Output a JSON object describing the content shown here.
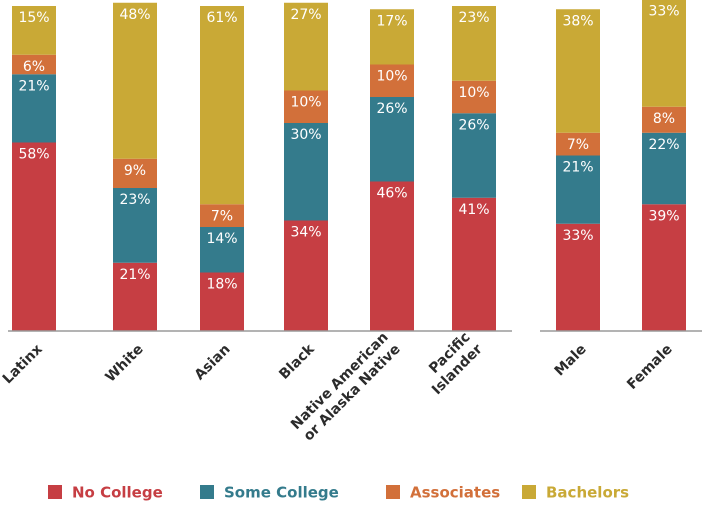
{
  "chart_data": {
    "type": "stacked_bar",
    "categories": [
      [
        "Latinx"
      ],
      [
        "White"
      ],
      [
        "Asian"
      ],
      [
        "Black"
      ],
      [
        "Native American",
        "or Alaska Native"
      ],
      [
        "Pacific",
        "Islander"
      ],
      [
        "Male"
      ],
      [
        "Female"
      ]
    ],
    "series": [
      {
        "name": "No College",
        "color": "#c63e43",
        "values": [
          58,
          21,
          18,
          34,
          46,
          41,
          33,
          39
        ],
        "value_labels": [
          "58%",
          "21%",
          "18%",
          "34%",
          "46%",
          "41%",
          "33%",
          "39%"
        ]
      },
      {
        "name": "Some College",
        "color": "#347b8c",
        "values": [
          21,
          23,
          14,
          30,
          26,
          26,
          21,
          22
        ],
        "value_labels": [
          "21%",
          "23%",
          "14%",
          "30%",
          "26%",
          "26%",
          "21%",
          "22%"
        ]
      },
      {
        "name": "Associates",
        "color": "#d2703a",
        "values": [
          6,
          9,
          7,
          10,
          10,
          10,
          7,
          8
        ],
        "value_labels": [
          "6%",
          "9%",
          "7%",
          "10%",
          "10%",
          "10%",
          "7%",
          "8%"
        ]
      },
      {
        "name": "Bachelors",
        "color": "#c9a936",
        "values": [
          15,
          48,
          61,
          27,
          17,
          23,
          38,
          33
        ],
        "value_labels": [
          "15%",
          "48%",
          "61%",
          "27%",
          "17%",
          "23%",
          "38%",
          "33%"
        ]
      }
    ],
    "ylim": [
      0,
      100
    ]
  }
}
